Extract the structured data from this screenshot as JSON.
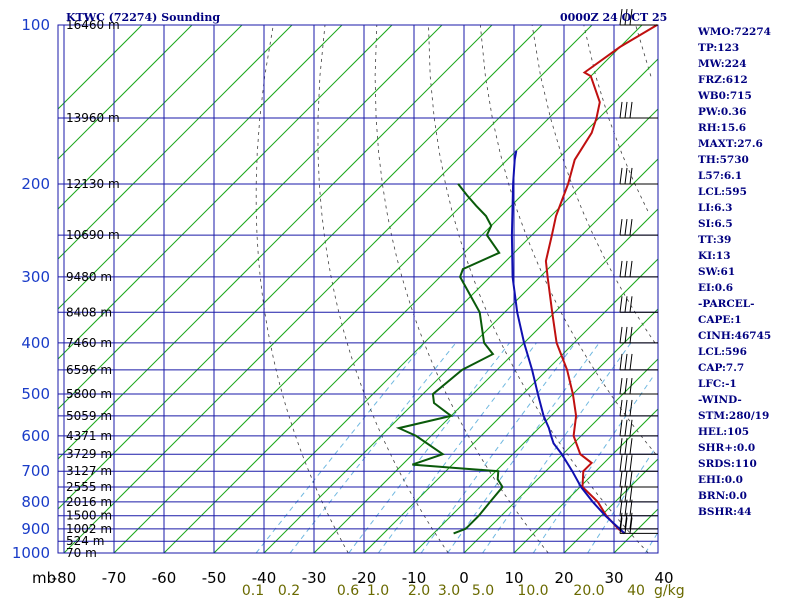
{
  "header": {
    "station": "KTWC (72274) Sounding",
    "time": "0000Z 24 OCT 25"
  },
  "indices": [
    "WMO:72274",
    "TP:123",
    "MW:224",
    "FRZ:612",
    "WB0:715",
    "PW:0.36",
    "RH:15.6",
    "MAXT:27.6",
    "TH:5730",
    "L57:6.1",
    "LCL:595",
    "LI:6.3",
    "SI:6.5",
    "TT:39",
    "KI:13",
    "SW:61",
    "EI:0.6",
    "-PARCEL-",
    "CAPE:1",
    "CINH:46745",
    "LCL:596",
    "CAP:7.7",
    "LFC:-1",
    "-WIND-",
    "STM:280/19",
    "HEL:105",
    "SHR+:0.0",
    "SRDS:110",
    "EHI:0.0",
    "BRN:0.0",
    "BSHR:44"
  ],
  "colors": {
    "grid": "#1a1aa8",
    "isotherm": "#1aa81a",
    "temperature": "#c01010",
    "dewpoint": "#0a5a0a",
    "parcel": "#1010b0",
    "mixing_ratio": "#70b8e0",
    "dry_adiabat": "#404040"
  },
  "axis_labels": {
    "pressure_unit": "mb",
    "mixing_ratio_unit": "g/kg"
  },
  "chart_data": {
    "type": "line",
    "title": "KTWC (72274) Sounding",
    "subtitle": "0000Z 24 OCT 25",
    "pressure_ticks": [
      100,
      200,
      300,
      400,
      500,
      600,
      700,
      800,
      900,
      1000
    ],
    "pressure_range": [
      100,
      1000
    ],
    "temperature_ticks": [
      -80,
      -70,
      -60,
      -50,
      -40,
      -30,
      -20,
      -10,
      0,
      10,
      20,
      30,
      40
    ],
    "temperature_range": [
      -80,
      40
    ],
    "isotherm_skew": "45 degrees",
    "mixing_ratio_labels": [
      "0.1",
      "0.2",
      "0.6",
      "1.0",
      "2.0",
      "3.0",
      "5.0",
      "10.0",
      "20.0",
      "40"
    ],
    "height_labels": [
      {
        "p": 100,
        "text": "16460 m"
      },
      {
        "p": 150,
        "text": "13960 m"
      },
      {
        "p": 200,
        "text": "12130 m"
      },
      {
        "p": 250,
        "text": "10690 m"
      },
      {
        "p": 300,
        "text": "9480 m"
      },
      {
        "p": 350,
        "text": "8408 m"
      },
      {
        "p": 400,
        "text": "7460 m"
      },
      {
        "p": 450,
        "text": "6596 m"
      },
      {
        "p": 500,
        "text": "5800 m"
      },
      {
        "p": 550,
        "text": "5059 m"
      },
      {
        "p": 600,
        "text": "4371 m"
      },
      {
        "p": 650,
        "text": "3729 m"
      },
      {
        "p": 700,
        "text": "3127 m"
      },
      {
        "p": 750,
        "text": "2555 m"
      },
      {
        "p": 800,
        "text": "2016 m"
      },
      {
        "p": 850,
        "text": "1500 m"
      },
      {
        "p": 900,
        "text": "1002 m"
      },
      {
        "p": 950,
        "text": "524 m"
      },
      {
        "p": 1000,
        "text": "70 m"
      }
    ],
    "series": [
      {
        "key": "temperature",
        "points": [
          [
            918,
            28.2
          ],
          [
            900,
            26.0
          ],
          [
            850,
            21.0
          ],
          [
            800,
            16.5
          ],
          [
            750,
            10.5
          ],
          [
            700,
            7.5
          ],
          [
            675,
            7.5
          ],
          [
            650,
            3.5
          ],
          [
            600,
            -1.5
          ],
          [
            550,
            -5.0
          ],
          [
            500,
            -10.0
          ],
          [
            450,
            -16.0
          ],
          [
            400,
            -23.5
          ],
          [
            350,
            -30.5
          ],
          [
            300,
            -38.5
          ],
          [
            280,
            -42.0
          ],
          [
            250,
            -46.0
          ],
          [
            230,
            -49.0
          ],
          [
            200,
            -53.0
          ],
          [
            180,
            -56.5
          ],
          [
            160,
            -58.5
          ],
          [
            150,
            -60.5
          ],
          [
            140,
            -63.0
          ],
          [
            125,
            -70.0
          ],
          [
            123,
            -72.0
          ],
          [
            110,
            -70.0
          ],
          [
            100,
            -67.0
          ]
        ]
      },
      {
        "key": "dewpoint",
        "points": [
          [
            918,
            -6.0
          ],
          [
            900,
            -4.5
          ],
          [
            850,
            -4.5
          ],
          [
            800,
            -5.0
          ],
          [
            750,
            -5.5
          ],
          [
            725,
            -8.0
          ],
          [
            700,
            -9.5
          ],
          [
            690,
            -19.0
          ],
          [
            680,
            -28.0
          ],
          [
            650,
            -24.0
          ],
          [
            600,
            -33.0
          ],
          [
            580,
            -38.0
          ],
          [
            550,
            -30.0
          ],
          [
            520,
            -36.0
          ],
          [
            500,
            -38.0
          ],
          [
            450,
            -37.0
          ],
          [
            420,
            -34.0
          ],
          [
            400,
            -38.0
          ],
          [
            350,
            -45.0
          ],
          [
            300,
            -56.0
          ],
          [
            290,
            -57.0
          ],
          [
            270,
            -53.0
          ],
          [
            250,
            -59.0
          ],
          [
            240,
            -60.0
          ],
          [
            230,
            -63.0
          ],
          [
            220,
            -67.0
          ],
          [
            210,
            -71.0
          ],
          [
            200,
            -75.0
          ]
        ]
      },
      {
        "key": "parcel",
        "points": [
          [
            918,
            28.2
          ],
          [
            850,
            20.8
          ],
          [
            800,
            15.5
          ],
          [
            750,
            10.2
          ],
          [
            700,
            5.3
          ],
          [
            650,
            -0.2
          ],
          [
            620,
            -4.0
          ],
          [
            600,
            -6.0
          ],
          [
            580,
            -8.0
          ],
          [
            550,
            -11.5
          ],
          [
            500,
            -17.0
          ],
          [
            450,
            -23.0
          ],
          [
            400,
            -30.0
          ],
          [
            350,
            -37.5
          ],
          [
            300,
            -45.5
          ],
          [
            250,
            -54.0
          ],
          [
            200,
            -64.0
          ],
          [
            180,
            -68.5
          ],
          [
            173,
            -70.0
          ]
        ]
      }
    ],
    "wind_barbs_levels_mb": [
      918,
      900,
      850,
      800,
      750,
      700,
      650,
      600,
      550,
      500,
      450,
      400,
      350,
      300,
      250,
      200,
      150,
      100
    ]
  }
}
